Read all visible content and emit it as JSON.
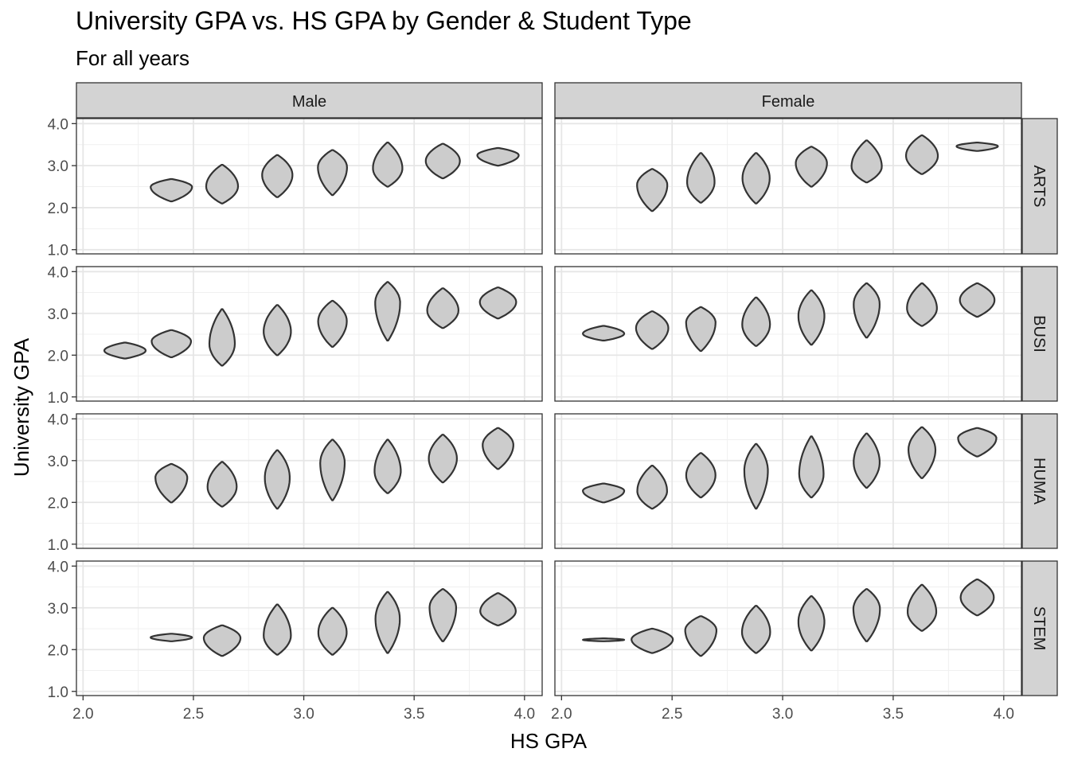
{
  "chart_data": {
    "type": "violin",
    "title": "University GPA vs. HS GPA by Gender & Student Type",
    "subtitle": "For all years",
    "xlabel": "HS GPA",
    "ylabel": "University GPA",
    "xlim": [
      1.97,
      4.08
    ],
    "ylim": [
      0.9,
      4.12
    ],
    "x_ticks": [
      "2.0",
      "2.5",
      "3.0",
      "3.5",
      "4.0"
    ],
    "y_ticks": [
      "1.0",
      "2.0",
      "3.0",
      "4.0"
    ],
    "columns": [
      "Male",
      "Female"
    ],
    "rows": [
      "ARTS",
      "BUSI",
      "HUMA",
      "STEM"
    ],
    "grid": true,
    "panels": [
      {
        "column": "Male",
        "row": "ARTS",
        "violins": [
          {
            "x": 2.4,
            "ymin": 2.15,
            "ymax": 2.68
          },
          {
            "x": 2.63,
            "ymin": 2.1,
            "ymax": 3.02
          },
          {
            "x": 2.88,
            "ymin": 2.25,
            "ymax": 3.25
          },
          {
            "x": 3.13,
            "ymin": 2.3,
            "ymax": 3.37
          },
          {
            "x": 3.38,
            "ymin": 2.5,
            "ymax": 3.55
          },
          {
            "x": 3.63,
            "ymin": 2.7,
            "ymax": 3.52
          },
          {
            "x": 3.88,
            "ymin": 3.0,
            "ymax": 3.42
          }
        ]
      },
      {
        "column": "Female",
        "row": "ARTS",
        "violins": [
          {
            "x": 2.41,
            "ymin": 1.92,
            "ymax": 2.92
          },
          {
            "x": 2.63,
            "ymin": 2.12,
            "ymax": 3.3
          },
          {
            "x": 2.88,
            "ymin": 2.1,
            "ymax": 3.3
          },
          {
            "x": 3.13,
            "ymin": 2.5,
            "ymax": 3.45
          },
          {
            "x": 3.38,
            "ymin": 2.6,
            "ymax": 3.6
          },
          {
            "x": 3.63,
            "ymin": 2.8,
            "ymax": 3.72
          },
          {
            "x": 3.88,
            "ymin": 3.35,
            "ymax": 3.55
          }
        ]
      },
      {
        "column": "Male",
        "row": "BUSI",
        "violins": [
          {
            "x": 2.19,
            "ymin": 1.92,
            "ymax": 2.3
          },
          {
            "x": 2.4,
            "ymin": 1.95,
            "ymax": 2.6
          },
          {
            "x": 2.63,
            "ymin": 1.75,
            "ymax": 3.1
          },
          {
            "x": 2.88,
            "ymin": 2.0,
            "ymax": 3.2
          },
          {
            "x": 3.13,
            "ymin": 2.2,
            "ymax": 3.3
          },
          {
            "x": 3.38,
            "ymin": 2.35,
            "ymax": 3.75
          },
          {
            "x": 3.63,
            "ymin": 2.65,
            "ymax": 3.6
          },
          {
            "x": 3.88,
            "ymin": 2.88,
            "ymax": 3.62
          }
        ]
      },
      {
        "column": "Female",
        "row": "BUSI",
        "violins": [
          {
            "x": 2.19,
            "ymin": 2.35,
            "ymax": 2.7
          },
          {
            "x": 2.41,
            "ymin": 2.15,
            "ymax": 3.05
          },
          {
            "x": 2.63,
            "ymin": 2.1,
            "ymax": 3.15
          },
          {
            "x": 2.88,
            "ymin": 2.22,
            "ymax": 3.38
          },
          {
            "x": 3.13,
            "ymin": 2.25,
            "ymax": 3.55
          },
          {
            "x": 3.38,
            "ymin": 2.42,
            "ymax": 3.72
          },
          {
            "x": 3.63,
            "ymin": 2.7,
            "ymax": 3.72
          },
          {
            "x": 3.88,
            "ymin": 2.92,
            "ymax": 3.72
          }
        ]
      },
      {
        "column": "Male",
        "row": "HUMA",
        "violins": [
          {
            "x": 2.4,
            "ymin": 2.0,
            "ymax": 2.92
          },
          {
            "x": 2.63,
            "ymin": 1.9,
            "ymax": 2.97
          },
          {
            "x": 2.88,
            "ymin": 1.85,
            "ymax": 3.25
          },
          {
            "x": 3.13,
            "ymin": 2.05,
            "ymax": 3.5
          },
          {
            "x": 3.38,
            "ymin": 2.22,
            "ymax": 3.5
          },
          {
            "x": 3.63,
            "ymin": 2.48,
            "ymax": 3.62
          },
          {
            "x": 3.88,
            "ymin": 2.8,
            "ymax": 3.78
          }
        ]
      },
      {
        "column": "Female",
        "row": "HUMA",
        "violins": [
          {
            "x": 2.19,
            "ymin": 2.0,
            "ymax": 2.45
          },
          {
            "x": 2.41,
            "ymin": 1.85,
            "ymax": 2.88
          },
          {
            "x": 2.63,
            "ymin": 2.12,
            "ymax": 3.18
          },
          {
            "x": 2.88,
            "ymin": 1.85,
            "ymax": 3.4
          },
          {
            "x": 3.13,
            "ymin": 2.12,
            "ymax": 3.58
          },
          {
            "x": 3.38,
            "ymin": 2.35,
            "ymax": 3.65
          },
          {
            "x": 3.63,
            "ymin": 2.58,
            "ymax": 3.8
          },
          {
            "x": 3.88,
            "ymin": 3.1,
            "ymax": 3.78
          }
        ]
      },
      {
        "column": "Male",
        "row": "STEM",
        "violins": [
          {
            "x": 2.4,
            "ymin": 2.2,
            "ymax": 2.38
          },
          {
            "x": 2.63,
            "ymin": 1.85,
            "ymax": 2.58
          },
          {
            "x": 2.88,
            "ymin": 1.88,
            "ymax": 3.08
          },
          {
            "x": 3.13,
            "ymin": 1.88,
            "ymax": 3.0
          },
          {
            "x": 3.38,
            "ymin": 1.92,
            "ymax": 3.38
          },
          {
            "x": 3.63,
            "ymin": 2.2,
            "ymax": 3.45
          },
          {
            "x": 3.88,
            "ymin": 2.58,
            "ymax": 3.35
          }
        ]
      },
      {
        "column": "Female",
        "row": "STEM",
        "violins": [
          {
            "x": 2.19,
            "ymin": 2.2,
            "ymax": 2.27
          },
          {
            "x": 2.41,
            "ymin": 1.92,
            "ymax": 2.5
          },
          {
            "x": 2.63,
            "ymin": 1.85,
            "ymax": 2.8
          },
          {
            "x": 2.88,
            "ymin": 1.92,
            "ymax": 3.05
          },
          {
            "x": 3.13,
            "ymin": 1.98,
            "ymax": 3.28
          },
          {
            "x": 3.38,
            "ymin": 2.2,
            "ymax": 3.45
          },
          {
            "x": 3.63,
            "ymin": 2.45,
            "ymax": 3.55
          },
          {
            "x": 3.88,
            "ymin": 2.82,
            "ymax": 3.68
          }
        ]
      }
    ]
  }
}
